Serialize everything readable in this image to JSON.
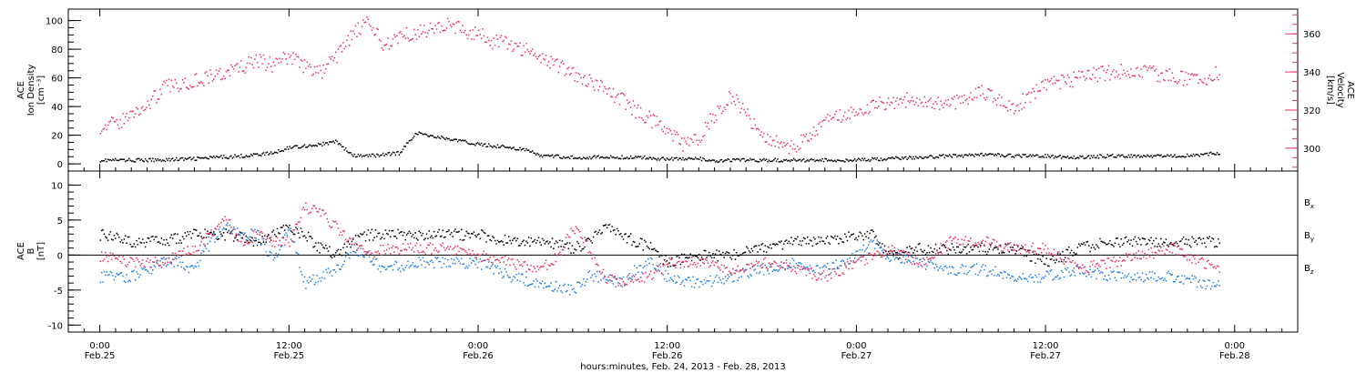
{
  "chart_data": [
    {
      "type": "scatter",
      "panel": "top",
      "ylabel_left": [
        "ACE",
        "Ion Density",
        "[cm⁻³]"
      ],
      "ylabel_right": [
        "ACE",
        "Velocity",
        "[km/s]"
      ],
      "ylim_left": [
        -5,
        108
      ],
      "yticks_left": [
        "0",
        "20",
        "40",
        "60",
        "80",
        "100"
      ],
      "yticks_left_values": [
        0,
        20,
        40,
        60,
        80,
        100
      ],
      "ylim_right": [
        288,
        373
      ],
      "yticks_right": [
        "300",
        "320",
        "340",
        "360"
      ],
      "yticks_right_values": [
        300,
        320,
        340,
        360
      ],
      "colors": {
        "density": "#000000",
        "velocity": "#e8315d"
      },
      "series": [
        {
          "name": "",
          "axis": "left",
          "color": "#000000",
          "x_hours": [
            0,
            3,
            6,
            9,
            11,
            12,
            14,
            15,
            16,
            17,
            18,
            19,
            20,
            22,
            24,
            26,
            27,
            28,
            30,
            32,
            34,
            36,
            38,
            39,
            40,
            42,
            44,
            46,
            48,
            50,
            52,
            54,
            56,
            58,
            60,
            62,
            64,
            66,
            68,
            70,
            71
          ],
          "y": [
            3,
            3,
            4,
            6,
            8,
            12,
            14,
            16,
            6,
            6,
            7,
            8,
            22,
            18,
            14,
            12,
            10,
            6,
            5,
            5,
            5,
            4,
            4,
            2,
            3,
            3,
            3,
            3,
            3,
            4,
            5,
            6,
            7,
            6,
            6,
            5,
            6,
            6,
            6,
            7,
            8
          ]
        },
        {
          "name": "",
          "axis": "right",
          "color": "#e8315d",
          "x_hours": [
            0,
            1,
            3,
            4,
            6,
            8,
            10,
            11,
            12,
            13,
            14,
            15,
            16,
            17,
            18,
            19,
            20,
            22,
            24,
            25,
            26,
            27,
            28,
            29,
            30,
            31,
            32,
            33,
            34,
            35,
            36,
            37,
            38,
            39,
            40,
            41,
            42,
            44,
            46,
            48,
            50,
            52,
            53,
            54,
            56,
            58,
            60,
            62,
            64,
            66,
            68,
            70,
            71
          ],
          "y": [
            312,
            313,
            323,
            332,
            336,
            340,
            346,
            344,
            349,
            343,
            340,
            349,
            360,
            366,
            354,
            360,
            361,
            365,
            360,
            356,
            355,
            352,
            348,
            344,
            340,
            336,
            331,
            326,
            320,
            315,
            309,
            302,
            306,
            318,
            328,
            318,
            307,
            300,
            314,
            320,
            325,
            326,
            324,
            324,
            330,
            322,
            333,
            337,
            340,
            341,
            338,
            336,
            340
          ]
        }
      ]
    },
    {
      "type": "scatter",
      "panel": "bottom",
      "ylabel_left": [
        "ACE",
        "B",
        "[nT]"
      ],
      "ylim": [
        -11,
        12
      ],
      "yticks": [
        "-10",
        "-5",
        "0",
        "5",
        "10"
      ],
      "yticks_values": [
        -10,
        -5,
        0,
        5,
        10
      ],
      "zero_line": true,
      "colors": {
        "Bx": "#000000",
        "By": "#1f7fe0",
        "Bz": "#e8315d"
      },
      "series": [
        {
          "name": "B_x",
          "color": "#000000",
          "x_hours": [
            0,
            2,
            4,
            6,
            8,
            10,
            11,
            12,
            13,
            14,
            15,
            16,
            17,
            18,
            20,
            22,
            24,
            26,
            28,
            30,
            31,
            32,
            33,
            34,
            35,
            36,
            38,
            40,
            42,
            44,
            46,
            48,
            49,
            50,
            52,
            54,
            56,
            58,
            60,
            62,
            64,
            66,
            68,
            70,
            71
          ],
          "y": [
            3,
            2,
            2,
            3,
            3,
            2,
            3,
            4,
            3,
            1,
            0,
            2,
            3,
            3,
            3,
            3,
            3,
            2,
            2,
            1,
            2,
            4,
            3,
            2,
            1,
            -1,
            0,
            0,
            1,
            2,
            2,
            3,
            3,
            0,
            1,
            1,
            1,
            1,
            -1,
            1,
            2,
            2,
            2,
            2,
            2
          ]
        },
        {
          "name": "B_y",
          "color": "#1f7fe0",
          "x_hours": [
            0,
            2,
            4,
            5,
            6,
            7,
            8,
            9,
            10,
            11,
            12,
            13,
            14,
            15,
            16,
            17,
            18,
            20,
            22,
            24,
            26,
            28,
            30,
            31,
            32,
            33,
            34,
            35,
            36,
            38,
            40,
            42,
            44,
            46,
            48,
            49,
            50,
            52,
            54,
            56,
            58,
            60,
            62,
            64,
            66,
            68,
            70,
            71
          ],
          "y": [
            -3,
            -3,
            -1,
            -1,
            -2,
            2,
            4,
            3,
            3,
            -1,
            4,
            -4,
            -3,
            -2,
            1,
            0,
            -2,
            -1,
            -1,
            -1,
            -3,
            -4,
            -5,
            -3,
            -3,
            -4,
            -2,
            -1,
            -3,
            -4,
            -3,
            -2,
            -1,
            -2,
            0,
            2,
            0,
            -1,
            -2,
            -2,
            -3,
            -3,
            -2,
            -3,
            -3,
            -3,
            -4,
            -4
          ]
        },
        {
          "name": "B_z",
          "color": "#e8315d",
          "x_hours": [
            0,
            2,
            4,
            5,
            6,
            7,
            8,
            9,
            10,
            11,
            12,
            13,
            14,
            15,
            16,
            17,
            18,
            20,
            22,
            24,
            26,
            28,
            29,
            30,
            31,
            32,
            33,
            34,
            35,
            36,
            38,
            40,
            42,
            44,
            46,
            48,
            49,
            50,
            52,
            54,
            56,
            58,
            60,
            62,
            64,
            66,
            68,
            70,
            71
          ],
          "y": [
            0,
            -1,
            -1,
            0,
            1,
            3,
            5,
            2,
            3,
            2,
            2,
            7,
            6,
            4,
            2,
            0,
            1,
            1,
            1,
            0,
            -1,
            -2,
            0,
            4,
            1,
            -3,
            -4,
            -3,
            -3,
            -1,
            -1,
            -2,
            -1,
            -2,
            -3,
            -1,
            0,
            1,
            -1,
            2,
            2,
            1,
            1,
            -2,
            -1,
            0,
            1,
            -1,
            -2
          ]
        }
      ],
      "legend": [
        {
          "label": "B",
          "sub": "x",
          "color": "#000000"
        },
        {
          "label": "B",
          "sub": "y",
          "color": "#1f7fe0"
        },
        {
          "label": "B",
          "sub": "z",
          "color": "#e8315d"
        }
      ]
    }
  ],
  "x_axis": {
    "range_hours": [
      -2,
      76
    ],
    "xlabel": "hours:minutes, Feb. 24, 2013 - Feb. 28, 2013",
    "ticks": [
      {
        "hour": 0,
        "time": "0:00",
        "date": "Feb.25"
      },
      {
        "hour": 12,
        "time": "12:00",
        "date": "Feb.25"
      },
      {
        "hour": 24,
        "time": "0:00",
        "date": "Feb.26"
      },
      {
        "hour": 36,
        "time": "12:00",
        "date": "Feb.26"
      },
      {
        "hour": 48,
        "time": "0:00",
        "date": "Feb.27"
      },
      {
        "hour": 60,
        "time": "12:00",
        "date": "Feb.27"
      },
      {
        "hour": 72,
        "time": "0:00",
        "date": "Feb.28"
      }
    ]
  }
}
